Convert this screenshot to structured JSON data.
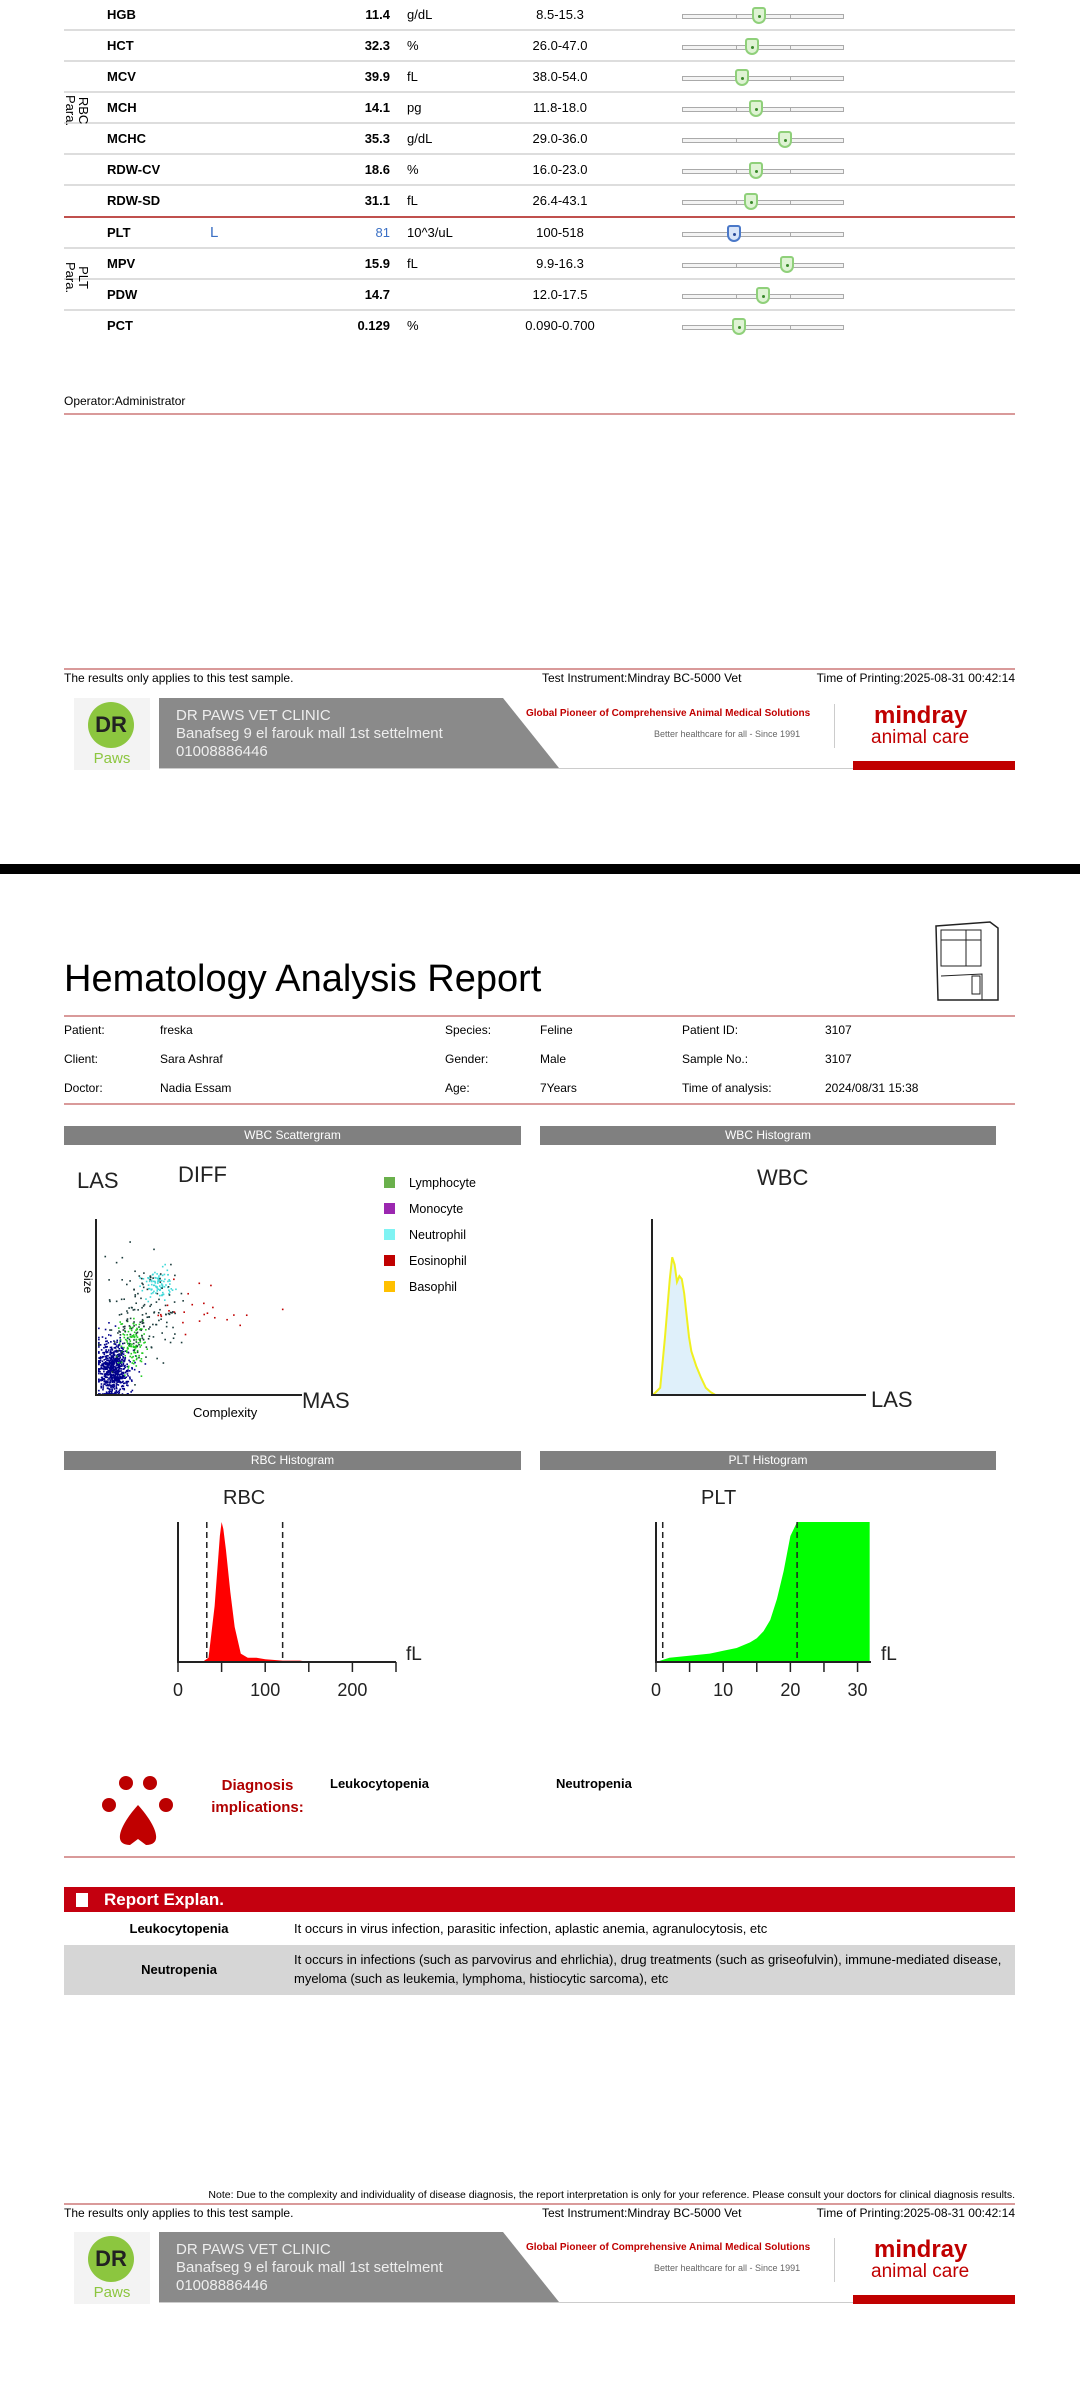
{
  "results": [
    {
      "name": "HGB",
      "flag": "",
      "value": "11.4",
      "unit": "g/dL",
      "range": "8.5-15.3"
    },
    {
      "name": "HCT",
      "flag": "",
      "value": "32.3",
      "unit": "%",
      "range": "26.0-47.0"
    },
    {
      "name": "MCV",
      "flag": "",
      "value": "39.9",
      "unit": "fL",
      "range": "38.0-54.0"
    },
    {
      "name": "MCH",
      "flag": "",
      "value": "14.1",
      "unit": "pg",
      "range": "11.8-18.0"
    },
    {
      "name": "MCHC",
      "flag": "",
      "value": "35.3",
      "unit": "g/dL",
      "range": "29.0-36.0"
    },
    {
      "name": "RDW-CV",
      "flag": "",
      "value": "18.6",
      "unit": "%",
      "range": "16.0-23.0"
    },
    {
      "name": "RDW-SD",
      "flag": "",
      "value": "31.1",
      "unit": "fL",
      "range": "26.4-43.1"
    },
    {
      "name": "PLT",
      "flag": "L",
      "value": "81",
      "unit": "10^3/uL",
      "range": "100-518"
    },
    {
      "name": "MPV",
      "flag": "",
      "value": "15.9",
      "unit": "fL",
      "range": "9.9-16.3"
    },
    {
      "name": "PDW",
      "flag": "",
      "value": "14.7",
      "unit": "",
      "range": "12.0-17.5"
    },
    {
      "name": "PCT",
      "flag": "",
      "value": "0.129",
      "unit": "%",
      "range": "0.090-0.700"
    }
  ],
  "groups": {
    "rbc": "RBC\nPara.",
    "plt": "PLT\nPara."
  },
  "operator": "Operator:Administrator",
  "footer": {
    "note_left": "The results only applies to this test sample.",
    "instrument": "Test Instrument:Mindray BC-5000 Vet",
    "printed": "Time of Printing:2025-08-31 00:42:14",
    "clinic_name": "DR PAWS VET CLINIC",
    "clinic_address": "Banafseg 9 el farouk mall 1st settelment",
    "clinic_phone": "01008886446",
    "logo_text": "DR",
    "logo_sub": "Paws",
    "tagline": "Global Pioneer of Comprehensive Animal Medical Solutions",
    "tagline2": "Better healthcare for all  -  Since 1991",
    "brand": "mindray",
    "brand_sub": "animal care"
  },
  "title": "Hematology Analysis Report",
  "patient": {
    "patient_label": "Patient:",
    "patient": "freska",
    "client_label": "Client:",
    "client": "Sara Ashraf",
    "doctor_label": "Doctor:",
    "doctor": "Nadia Essam",
    "species_label": "Species:",
    "species": "Feline",
    "gender_label": "Gender:",
    "gender": "Male",
    "age_label": "Age:",
    "age": "7Years",
    "pid_label": "Patient ID:",
    "pid": "3107",
    "sample_label": "Sample No.:",
    "sample": "3107",
    "time_label": "Time of analysis:",
    "time": "2024/08/31 15:38"
  },
  "sections": {
    "scatter": "WBC Scattergram",
    "wbc": "WBC Histogram",
    "rbc": "RBC Histogram",
    "plt": "PLT Histogram"
  },
  "chart_data": [
    {
      "type": "scatter",
      "title": "DIFF",
      "xlabel": "Complexity",
      "ylabel": "Size",
      "x_axis_name": "MAS",
      "y_axis_name": "LAS",
      "legend": [
        {
          "name": "Lymphocyte",
          "color": "#6ab04c"
        },
        {
          "name": "Monocyte",
          "color": "#9b27b0"
        },
        {
          "name": "Neutrophil",
          "color": "#7ff3f3"
        },
        {
          "name": "Eosinophil",
          "color": "#c00000"
        },
        {
          "name": "Basophil",
          "color": "#ffc000"
        }
      ],
      "clusters": [
        {
          "label": "other",
          "color": "#00008b",
          "cx": 8,
          "cy": 15,
          "sx": 4,
          "sy": 8,
          "n": 700
        },
        {
          "label": "Lymphocyte",
          "color": "#22cc22",
          "cx": 17,
          "cy": 30,
          "sx": 3,
          "sy": 7,
          "n": 120
        },
        {
          "label": "Neutrophil",
          "color": "#40d8d8",
          "cx": 30,
          "cy": 63,
          "sx": 4,
          "sy": 4,
          "n": 90
        },
        {
          "label": "ghost",
          "color": "#1a3a3a",
          "cx": 22,
          "cy": 45,
          "sx": 9,
          "sy": 14,
          "n": 160
        },
        {
          "label": "Eosinophil",
          "color": "#c00000",
          "cx": 55,
          "cy": 50,
          "sx": 13,
          "sy": 7,
          "n": 25
        }
      ]
    },
    {
      "type": "area",
      "title": "WBC",
      "xlabel": "LAS",
      "x": [
        0,
        3,
        5,
        7,
        8,
        9,
        10,
        11,
        12,
        13,
        14,
        15,
        16,
        17,
        18,
        20,
        22,
        24,
        26,
        28
      ],
      "y": [
        0,
        5,
        40,
        80,
        95,
        90,
        78,
        82,
        80,
        70,
        55,
        40,
        30,
        25,
        20,
        12,
        5,
        2,
        0,
        0
      ]
    },
    {
      "type": "area",
      "title": "RBC",
      "xlabel": "fL",
      "xticks": [
        0,
        100,
        200
      ],
      "xlim": [
        0,
        250
      ],
      "dashed": [
        33,
        120
      ],
      "x": [
        0,
        28,
        35,
        42,
        48,
        50,
        52,
        55,
        60,
        65,
        72,
        80,
        90,
        100,
        120,
        140,
        150
      ],
      "y": [
        0,
        0,
        3,
        40,
        90,
        100,
        95,
        80,
        50,
        25,
        6,
        3,
        3,
        2,
        1,
        1,
        0
      ]
    },
    {
      "type": "area",
      "title": "PLT",
      "xlabel": "fL",
      "xticks": [
        0,
        10,
        20,
        30
      ],
      "xlim": [
        0,
        32
      ],
      "dashed": [
        1,
        21
      ],
      "x": [
        0,
        2,
        4,
        6,
        8,
        10,
        12,
        14,
        15,
        16,
        17,
        18,
        19,
        20,
        21,
        22,
        25,
        28,
        31.8
      ],
      "y": [
        0,
        3,
        4,
        5,
        6,
        8,
        10,
        14,
        17,
        22,
        30,
        45,
        65,
        90,
        100,
        100,
        100,
        100,
        100
      ]
    }
  ],
  "diagnosis": {
    "label1": "Diagnosis",
    "label2": "implications:",
    "items": [
      "Leukocytopenia",
      "Neutropenia"
    ]
  },
  "explan": {
    "title": "Report Explan.",
    "rows": [
      {
        "term": "Leukocytopenia",
        "text": "It occurs in virus infection, parasitic infection, aplastic anemia, agranulocytosis, etc"
      },
      {
        "term": "Neutropenia",
        "text": "It occurs in infections (such as parvovirus and ehrlichia), drug treatments (such as griseofulvin), immune-mediated disease, myeloma (such as leukemia, lymphoma, histiocytic sarcoma), etc"
      }
    ]
  },
  "note": "Note: Due to the complexity and individuality of disease diagnosis, the report interpretation is only for your reference. Please consult your doctors for clinical diagnosis results."
}
